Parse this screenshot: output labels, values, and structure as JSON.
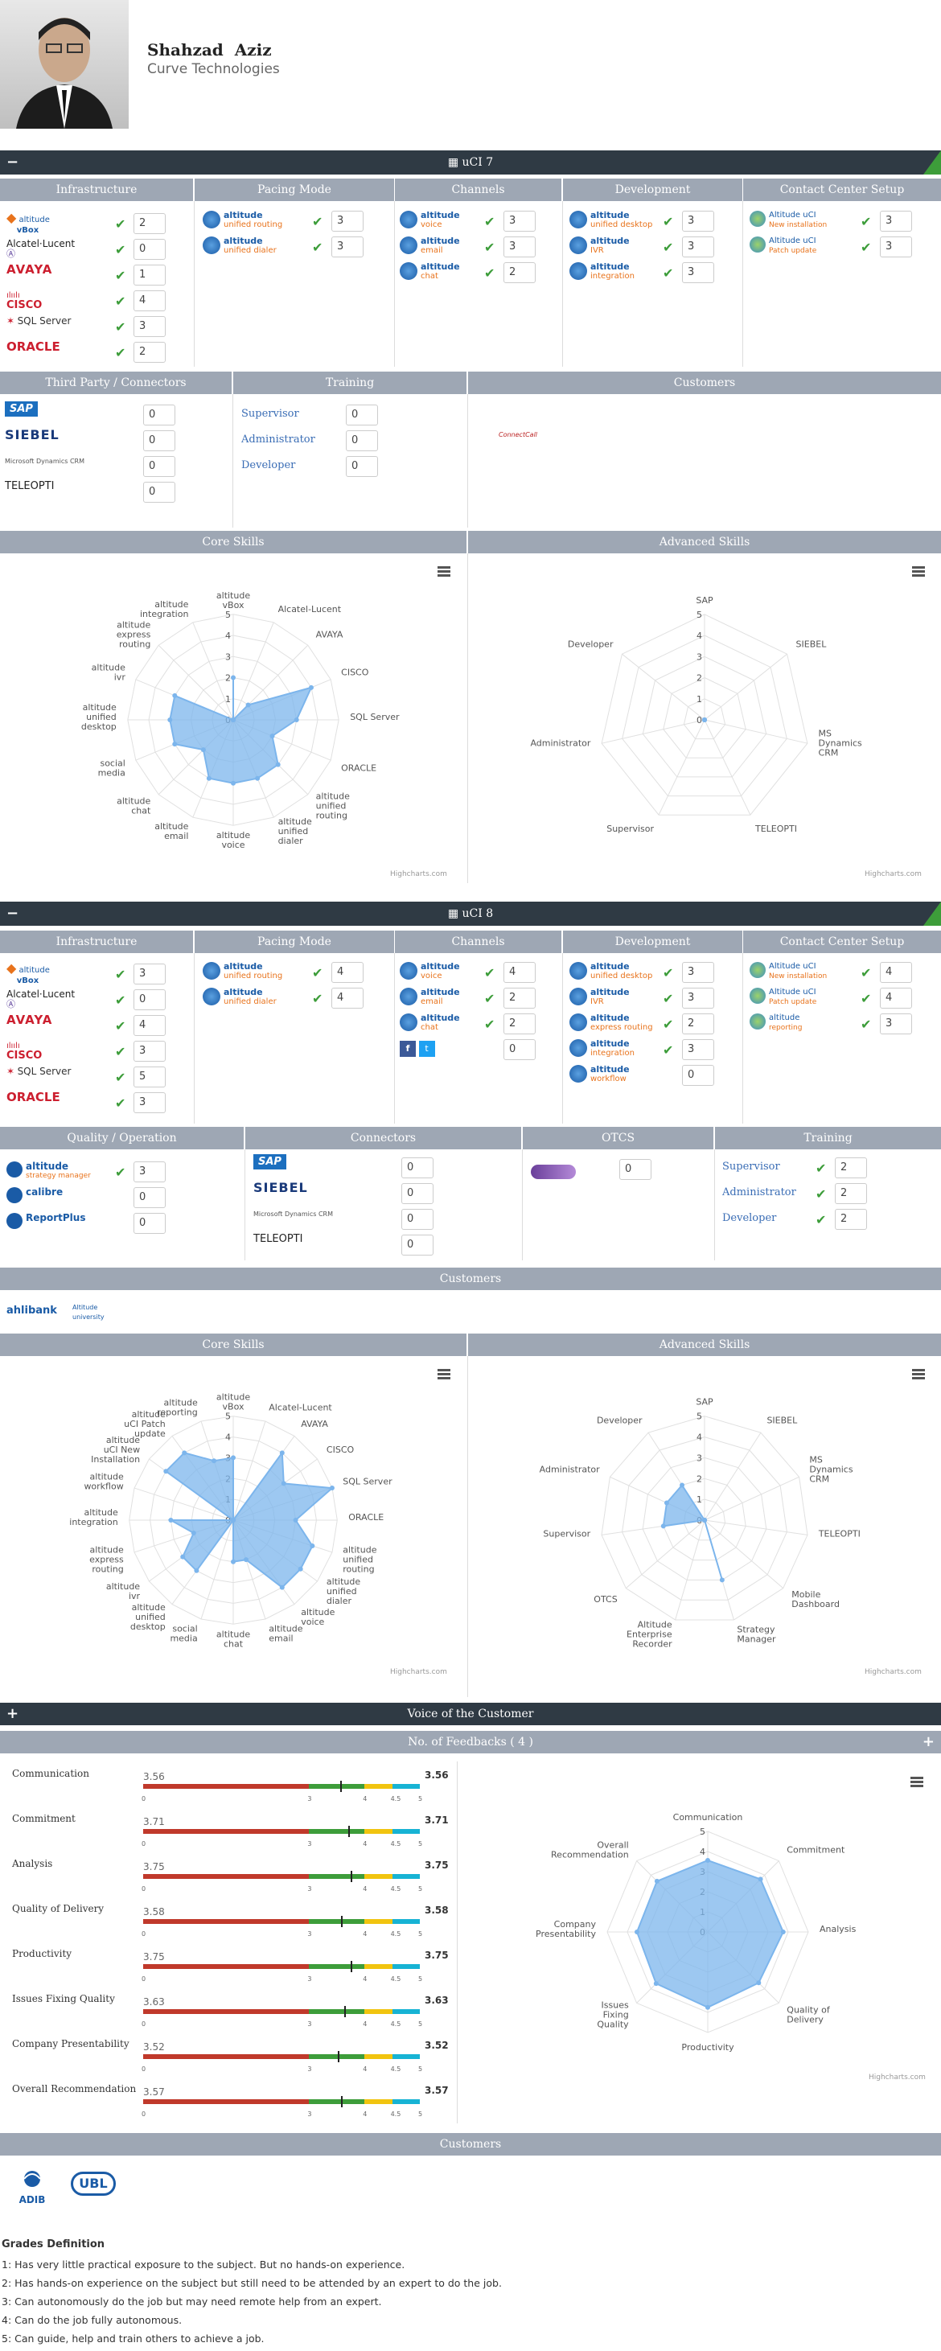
{
  "profile": {
    "first_name": "Shahzad",
    "last_name": "Aziz",
    "company": "Curve Technologies"
  },
  "uci7": {
    "title": "uCI 7",
    "headers": [
      "Infrastructure",
      "Pacing Mode",
      "Channels",
      "Development",
      "Contact Center Setup"
    ],
    "infrastructure": [
      {
        "name": "altitude vBox",
        "value": "2"
      },
      {
        "name": "Alcatel-Lucent",
        "value": "0"
      },
      {
        "name": "AVAYA",
        "value": "1"
      },
      {
        "name": "CISCO",
        "value": "4"
      },
      {
        "name": "SQL Server",
        "value": "3"
      },
      {
        "name": "ORACLE",
        "value": "2"
      }
    ],
    "pacing": [
      {
        "name": "altitude",
        "sub": "unified routing",
        "value": "3"
      },
      {
        "name": "altitude",
        "sub": "unified dialer",
        "value": "3"
      }
    ],
    "channels": [
      {
        "name": "altitude",
        "sub": "voice",
        "value": "3"
      },
      {
        "name": "altitude",
        "sub": "email",
        "value": "3"
      },
      {
        "name": "altitude",
        "sub": "chat",
        "value": "2"
      }
    ],
    "development": [
      {
        "name": "altitude",
        "sub": "unified desktop",
        "value": "3"
      },
      {
        "name": "altitude",
        "sub": "IVR",
        "value": "3"
      },
      {
        "name": "altitude",
        "sub": "integration",
        "value": "3"
      }
    ],
    "setup": [
      {
        "name": "Altitude uCI",
        "sub": "New installation",
        "value": "3"
      },
      {
        "name": "Altitude uCI",
        "sub": "Patch update",
        "value": "3"
      }
    ],
    "headers2": [
      "Third Party / Connectors",
      "Training",
      "Customers"
    ],
    "connectors": [
      {
        "name": "SAP",
        "value": "0"
      },
      {
        "name": "SIEBEL",
        "value": "0"
      },
      {
        "name": "Microsoft Dynamics CRM",
        "value": "0"
      },
      {
        "name": "TELEOPTI",
        "value": "0"
      }
    ],
    "training": [
      {
        "name": "Supervisor",
        "value": "0"
      },
      {
        "name": "Administrator",
        "value": "0"
      },
      {
        "name": "Developer",
        "value": "0"
      }
    ],
    "customer_logo": "ConnectCall",
    "headers3": [
      "Core Skills",
      "Advanced Skills"
    ],
    "core_labels": [
      "altitude vBox",
      "Alcatel-Lucent",
      "AVAYA",
      "CISCO",
      "SQL Server",
      "ORACLE",
      "altitude unified routing",
      "altitude unified dialer",
      "altitude voice",
      "altitude email",
      "altitude chat",
      "social media",
      "altitude unified desktop",
      "altitude ivr",
      "altitude express routing",
      "altitude integration"
    ],
    "core_values": [
      2,
      0,
      1,
      4,
      3,
      2,
      3,
      3,
      3,
      3,
      2,
      3,
      3,
      3,
      0,
      0
    ],
    "adv_labels": [
      "SAP",
      "SIEBEL",
      "MS Dynamics CRM",
      "TELEOPTI",
      "Supervisor",
      "Administrator",
      "Developer"
    ],
    "adv_values": [
      0,
      0,
      0,
      0,
      0,
      0,
      0
    ],
    "highcharts": "Highcharts.com"
  },
  "uci8": {
    "title": "uCI 8",
    "headers": [
      "Infrastructure",
      "Pacing Mode",
      "Channels",
      "Development",
      "Contact Center Setup"
    ],
    "infrastructure": [
      {
        "name": "altitude vBox",
        "value": "3"
      },
      {
        "name": "Alcatel-Lucent",
        "value": "0"
      },
      {
        "name": "AVAYA",
        "value": "4"
      },
      {
        "name": "CISCO",
        "value": "3"
      },
      {
        "name": "SQL Server",
        "value": "5"
      },
      {
        "name": "ORACLE",
        "value": "3"
      }
    ],
    "pacing": [
      {
        "name": "altitude",
        "sub": "unified routing",
        "value": "4"
      },
      {
        "name": "altitude",
        "sub": "unified dialer",
        "value": "4"
      }
    ],
    "channels": [
      {
        "name": "altitude",
        "sub": "voice",
        "value": "4"
      },
      {
        "name": "altitude",
        "sub": "email",
        "value": "2"
      },
      {
        "name": "altitude",
        "sub": "chat",
        "value": "2"
      },
      {
        "name": "social",
        "sub": "",
        "value": "0"
      }
    ],
    "development": [
      {
        "name": "altitude",
        "sub": "unified desktop",
        "value": "3"
      },
      {
        "name": "altitude",
        "sub": "IVR",
        "value": "3"
      },
      {
        "name": "altitude",
        "sub": "express routing",
        "value": "2"
      },
      {
        "name": "altitude",
        "sub": "integration",
        "value": "3"
      },
      {
        "name": "altitude",
        "sub": "workflow",
        "value": "0"
      }
    ],
    "setup": [
      {
        "name": "Altitude uCI",
        "sub": "New installation",
        "value": "4"
      },
      {
        "name": "Altitude uCI",
        "sub": "Patch update",
        "value": "4"
      },
      {
        "name": "altitude",
        "sub": "reporting",
        "value": "3"
      }
    ],
    "headers2": [
      "Quality / Operation",
      "Connectors",
      "OTCS",
      "Training"
    ],
    "quality": [
      {
        "name": "altitude",
        "sub": "strategy manager",
        "value": "3"
      },
      {
        "name": "calibre",
        "value": "0"
      },
      {
        "name": "ReportPlus",
        "value": "0"
      }
    ],
    "connectors": [
      {
        "name": "SAP",
        "value": "0"
      },
      {
        "name": "SIEBEL",
        "value": "0"
      },
      {
        "name": "Microsoft Dynamics CRM",
        "value": "0"
      },
      {
        "name": "TELEOPTI",
        "value": "0"
      }
    ],
    "otcs": {
      "value": "0"
    },
    "training": [
      {
        "name": "Supervisor",
        "value": "2"
      },
      {
        "name": "Administrator",
        "value": "2"
      },
      {
        "name": "Developer",
        "value": "2"
      }
    ],
    "customers_header": "Customers",
    "customers": [
      "ahlibank",
      "Altitude university"
    ],
    "headers3": [
      "Core Skills",
      "Advanced Skills"
    ],
    "core_labels": [
      "altitude vBox",
      "Alcatel-Lucent",
      "AVAYA",
      "CISCO",
      "SQL Server",
      "ORACLE",
      "altitude unified routing",
      "altitude unified dialer",
      "altitude voice",
      "altitude email",
      "altitude chat",
      "social media",
      "altitude unified desktop",
      "altitude ivr",
      "altitude express routing",
      "altitude integration",
      "altitude workflow",
      "altitude uCI New Installation",
      "altitude uCI Patch update",
      "altitude reporting"
    ],
    "core_values": [
      3,
      0,
      4,
      3,
      5,
      3,
      4,
      4,
      4,
      2,
      2,
      0,
      3,
      3,
      2,
      3,
      0,
      4,
      4,
      3
    ],
    "adv_labels": [
      "SAP",
      "SIEBEL",
      "MS Dynamics CRM",
      "TELEOPTI",
      "Mobile Dashboard",
      "Strategy Manager",
      "Altitude Enterprise Recorder",
      "OTCS",
      "Supervisor",
      "Administrator",
      "Developer"
    ],
    "adv_values": [
      0,
      0,
      0,
      0,
      0,
      3,
      0,
      0,
      2,
      2,
      2
    ],
    "highcharts": "Highcharts.com"
  },
  "voc": {
    "title": "Voice of the Customer",
    "feedback_header": "No. of Feedbacks ( 4 )",
    "rows": [
      {
        "label": "Communication",
        "value": "3.56",
        "num": 3.56
      },
      {
        "label": "Commitment",
        "value": "3.71",
        "num": 3.71
      },
      {
        "label": "Analysis",
        "value": "3.75",
        "num": 3.75
      },
      {
        "label": "Quality of Delivery",
        "value": "3.58",
        "num": 3.58
      },
      {
        "label": "Productivity",
        "value": "3.75",
        "num": 3.75
      },
      {
        "label": "Issues Fixing Quality",
        "value": "3.63",
        "num": 3.63
      },
      {
        "label": "Company Presentability",
        "value": "3.52",
        "num": 3.52
      },
      {
        "label": "Overall Recommendation",
        "value": "3.57",
        "num": 3.57
      }
    ],
    "scale": [
      "0",
      "3",
      "4",
      "4.5",
      "5"
    ],
    "radar_labels": [
      "Communication",
      "Commitment",
      "Analysis",
      "Quality of Delivery",
      "Productivity",
      "Issues Fixing Quality",
      "Company Presentability",
      "Overall Recommendation"
    ],
    "highcharts": "Highcharts.com",
    "customers_header": "Customers",
    "customers": [
      "ADIB",
      "UBL"
    ]
  },
  "grades": {
    "title": "Grades Definition",
    "items": [
      "1: Has very little practical exposure to the subject. But no hands-on experience.",
      "2: Has hands-on experience on the subject but still need to be attended by an expert to do the job.",
      "3: Can autonomously do the job but may need remote help from an expert.",
      "4: Can do the job fully autonomous.",
      "5: Can guide, help and train others to achieve a job."
    ]
  },
  "colors": {
    "dark": "#2f3a44",
    "header": "#9ea7b4",
    "green": "#3d9d3a",
    "radar": "#7cb5ec"
  },
  "chart_data": [
    {
      "type": "radar",
      "title": "Core Skills",
      "ylim": [
        0,
        5
      ],
      "categories": [
        "altitude vBox",
        "Alcatel-Lucent",
        "AVAYA",
        "CISCO",
        "SQL Server",
        "ORACLE",
        "altitude unified routing",
        "altitude unified dialer",
        "altitude voice",
        "altitude email",
        "altitude chat",
        "social media",
        "altitude unified desktop",
        "altitude ivr",
        "altitude express routing",
        "altitude integration"
      ],
      "values": [
        2,
        0,
        1,
        4,
        3,
        2,
        3,
        3,
        3,
        3,
        2,
        3,
        3,
        3,
        0,
        0
      ]
    },
    {
      "type": "radar",
      "title": "Advanced Skills",
      "ylim": [
        0,
        5
      ],
      "categories": [
        "SAP",
        "SIEBEL",
        "MS Dynamics CRM",
        "TELEOPTI",
        "Supervisor",
        "Administrator",
        "Developer"
      ],
      "values": [
        0,
        0,
        0,
        0,
        0,
        0,
        0
      ]
    },
    {
      "type": "radar",
      "title": "Core Skills",
      "ylim": [
        0,
        5
      ],
      "categories": [
        "altitude vBox",
        "Alcatel-Lucent",
        "AVAYA",
        "CISCO",
        "SQL Server",
        "ORACLE",
        "altitude unified routing",
        "altitude unified dialer",
        "altitude voice",
        "altitude email",
        "altitude chat",
        "social media",
        "altitude unified desktop",
        "altitude ivr",
        "altitude express routing",
        "altitude integration",
        "altitude workflow",
        "altitude uCI New Installation",
        "altitude uCI Patch update",
        "altitude reporting"
      ],
      "values": [
        3,
        0,
        4,
        3,
        5,
        3,
        4,
        4,
        4,
        2,
        2,
        0,
        3,
        3,
        2,
        3,
        0,
        4,
        4,
        3
      ]
    },
    {
      "type": "radar",
      "title": "Advanced Skills",
      "ylim": [
        0,
        5
      ],
      "categories": [
        "SAP",
        "SIEBEL",
        "MS Dynamics CRM",
        "TELEOPTI",
        "Mobile Dashboard",
        "Strategy Manager",
        "Altitude Enterprise Recorder",
        "OTCS",
        "Supervisor",
        "Administrator",
        "Developer"
      ],
      "values": [
        0,
        0,
        0,
        0,
        0,
        3,
        0,
        0,
        2,
        2,
        2
      ]
    },
    {
      "type": "radar",
      "title": "Voice of the Customer",
      "ylim": [
        0,
        5
      ],
      "categories": [
        "Communication",
        "Commitment",
        "Analysis",
        "Quality of Delivery",
        "Productivity",
        "Issues Fixing Quality",
        "Company Presentability",
        "Overall Recommendation"
      ],
      "values": [
        3.56,
        3.71,
        3.75,
        3.58,
        3.75,
        3.63,
        3.52,
        3.57
      ]
    }
  ]
}
